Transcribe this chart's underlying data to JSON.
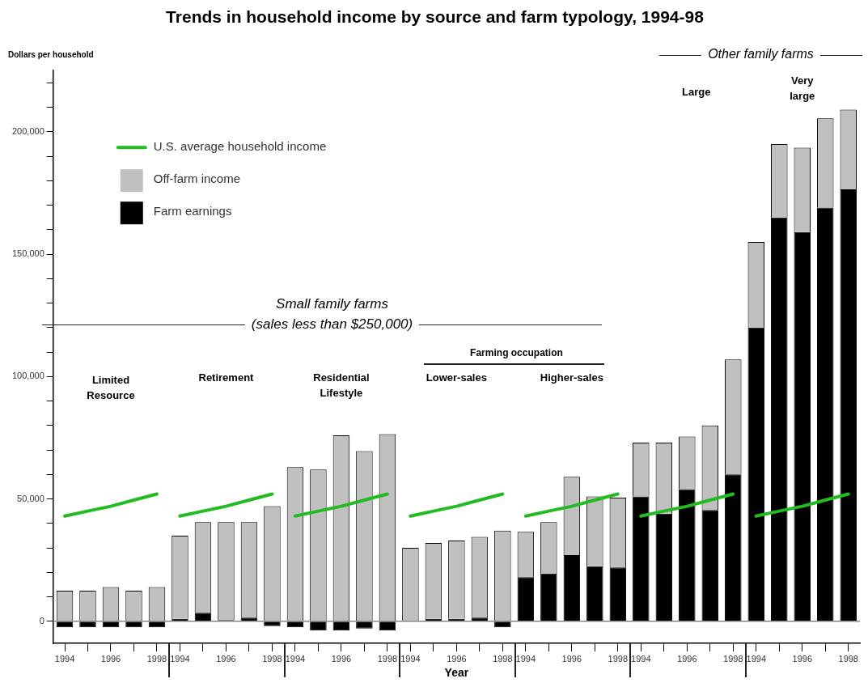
{
  "chart_data": {
    "type": "bar",
    "title": "Trends in household income by source and farm typology, 1994-98",
    "xlabel": "Year",
    "ylabel": "Dollars per household",
    "categories": [
      "1994",
      null,
      "1996",
      null,
      "1998",
      "1994",
      null,
      "1996",
      null,
      "1998",
      "1994",
      null,
      "1996",
      null,
      "1998",
      "1994",
      null,
      "1996",
      null,
      "1998",
      "1994",
      null,
      "1996",
      null,
      "1998",
      "1994",
      null,
      "1996",
      null,
      "1998",
      "1994",
      null,
      "1996",
      null,
      "1998"
    ],
    "series": [
      {
        "name": "Farm earnings",
        "color": "#000000",
        "values": [
          -2500,
          -2500,
          -2500,
          -2500,
          -2500,
          1000,
          3500,
          500,
          1500,
          -2000,
          -2500,
          -3800,
          -3800,
          -3000,
          -3800,
          0,
          1000,
          1000,
          1500,
          -2500,
          18000,
          19500,
          27000,
          22500,
          22000,
          51000,
          44000,
          54000,
          45500,
          60000,
          120000,
          165000,
          159000,
          169000,
          176500
        ]
      },
      {
        "name": "Off-farm income",
        "color": "#c0c0c0",
        "values": [
          12500,
          12500,
          14000,
          12500,
          14000,
          34000,
          37000,
          40000,
          39000,
          47000,
          63000,
          62000,
          76000,
          69500,
          76500,
          30000,
          31000,
          32000,
          33000,
          37000,
          18500,
          21000,
          32000,
          28500,
          28500,
          22000,
          29000,
          21500,
          34500,
          47000,
          35000,
          30000,
          34500,
          36500,
          32500
        ]
      },
      {
        "name": "U.S. average household income",
        "type": "line",
        "color": "#22bb22",
        "values": [
          43000,
          45000,
          47000,
          49500,
          52000,
          43000,
          45000,
          47000,
          49500,
          52000,
          43000,
          45000,
          47000,
          49500,
          52000,
          43000,
          45000,
          47000,
          49500,
          52000,
          43000,
          45000,
          47000,
          49500,
          52000,
          43000,
          45000,
          47000,
          49500,
          52000,
          43000,
          45000,
          47000,
          49500,
          52000
        ]
      }
    ],
    "stacked": true,
    "ylim": [
      -9000,
      225000
    ],
    "yticks": [
      {
        "value": 0,
        "label": "0"
      },
      {
        "value": 10000,
        "label": null
      },
      {
        "value": 20000,
        "label": null
      },
      {
        "value": 30000,
        "label": null
      },
      {
        "value": 40000,
        "label": null
      },
      {
        "value": 50000,
        "label": "50,000"
      },
      {
        "value": 60000,
        "label": null
      },
      {
        "value": 70000,
        "label": null
      },
      {
        "value": 80000,
        "label": null
      },
      {
        "value": 90000,
        "label": null
      },
      {
        "value": 100000,
        "label": "100,000"
      },
      {
        "value": 110000,
        "label": null
      },
      {
        "value": 120000,
        "label": null
      },
      {
        "value": 130000,
        "label": null
      },
      {
        "value": 140000,
        "label": null
      },
      {
        "value": 150000,
        "label": "150,000"
      },
      {
        "value": 160000,
        "label": null
      },
      {
        "value": 170000,
        "label": null
      },
      {
        "value": 180000,
        "label": null
      },
      {
        "value": 190000,
        "label": null
      },
      {
        "value": 200000,
        "label": "200,000"
      },
      {
        "value": 210000,
        "label": null
      },
      {
        "value": 220000,
        "label": null
      }
    ],
    "ref_lines": [
      {
        "axis": "y",
        "value": 0,
        "color": "#888888"
      }
    ],
    "annotations": [
      "Other family farms",
      "Small family farms",
      "(sales less than $250,000)",
      "Farming occupation",
      "Limited Resource",
      "Retirement",
      "Residential Lifestyle",
      "Lower-sales",
      "Higher-sales",
      "Large",
      "Very large"
    ],
    "grid": false,
    "legend": "top left",
    "marker": "none",
    "line_style": "solid"
  }
}
